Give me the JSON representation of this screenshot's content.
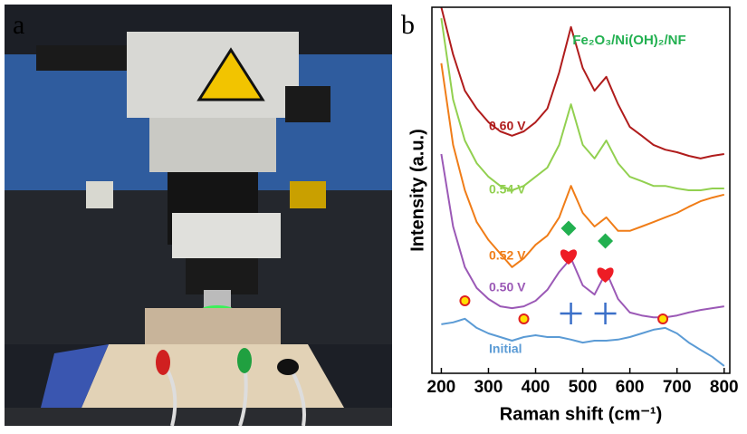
{
  "panel_a": {
    "label": "a"
  },
  "chart_data": {
    "type": "line",
    "panel_label": "b",
    "title": "Fe₂O₃/Ni(OH)₂/NF",
    "x_label": "Raman shift (cm⁻¹)",
    "y_label": "Intensity (a.u.)",
    "x": [
      200,
      225,
      250,
      275,
      300,
      325,
      350,
      375,
      400,
      425,
      450,
      475,
      500,
      525,
      550,
      575,
      600,
      625,
      650,
      675,
      700,
      725,
      750,
      775,
      800
    ],
    "xlim": [
      180,
      812
    ],
    "xticks": [
      200,
      300,
      400,
      500,
      600,
      700,
      800
    ],
    "ylim": [
      0,
      100
    ],
    "series": [
      {
        "name": "Initial",
        "color": "#5b9bd5",
        "values": [
          13.4,
          13.9,
          14.9,
          12.4,
          10.9,
          9.9,
          8.9,
          9.9,
          10.4,
          9.9,
          9.9,
          9.2,
          8.4,
          8.9,
          8.9,
          9.2,
          9.9,
          10.9,
          11.9,
          12.4,
          10.9,
          8.4,
          6.4,
          4.5,
          2.0
        ]
      },
      {
        "name": "0.50 V",
        "color": "#9b59b6",
        "values": [
          59.9,
          40.1,
          29.0,
          23.3,
          20.3,
          18.3,
          17.8,
          18.3,
          19.8,
          22.8,
          27.7,
          31.4,
          24.0,
          21.5,
          27.7,
          20.3,
          16.6,
          15.8,
          15.3,
          15.3,
          15.8,
          16.6,
          17.3,
          17.8,
          18.3
        ]
      },
      {
        "name": "0.52 V",
        "color": "#f07d18",
        "values": [
          84.7,
          62.4,
          50.0,
          41.3,
          36.4,
          32.7,
          29.0,
          31.4,
          35.1,
          37.6,
          42.6,
          51.2,
          43.8,
          40.1,
          42.6,
          38.9,
          38.9,
          40.1,
          41.3,
          42.6,
          43.8,
          45.5,
          47.0,
          48.0,
          48.8
        ]
      },
      {
        "name": "0.54 V",
        "color": "#92d050",
        "values": [
          97.0,
          74.8,
          63.6,
          57.4,
          53.7,
          51.2,
          50.0,
          51.2,
          53.7,
          56.2,
          62.4,
          73.5,
          62.4,
          58.7,
          63.6,
          57.4,
          53.7,
          52.5,
          51.2,
          51.2,
          50.5,
          50.0,
          50.0,
          50.5,
          50.5
        ]
      },
      {
        "name": "0.60 V",
        "color": "#b01c1c",
        "values": [
          100,
          87.1,
          77.2,
          72.3,
          68.6,
          66.1,
          64.9,
          66.1,
          68.6,
          72.3,
          82.2,
          94.6,
          83.4,
          77.2,
          81.0,
          73.5,
          67.3,
          64.9,
          62.4,
          61.1,
          60.4,
          59.4,
          58.7,
          59.4,
          59.9
        ]
      }
    ]
  }
}
